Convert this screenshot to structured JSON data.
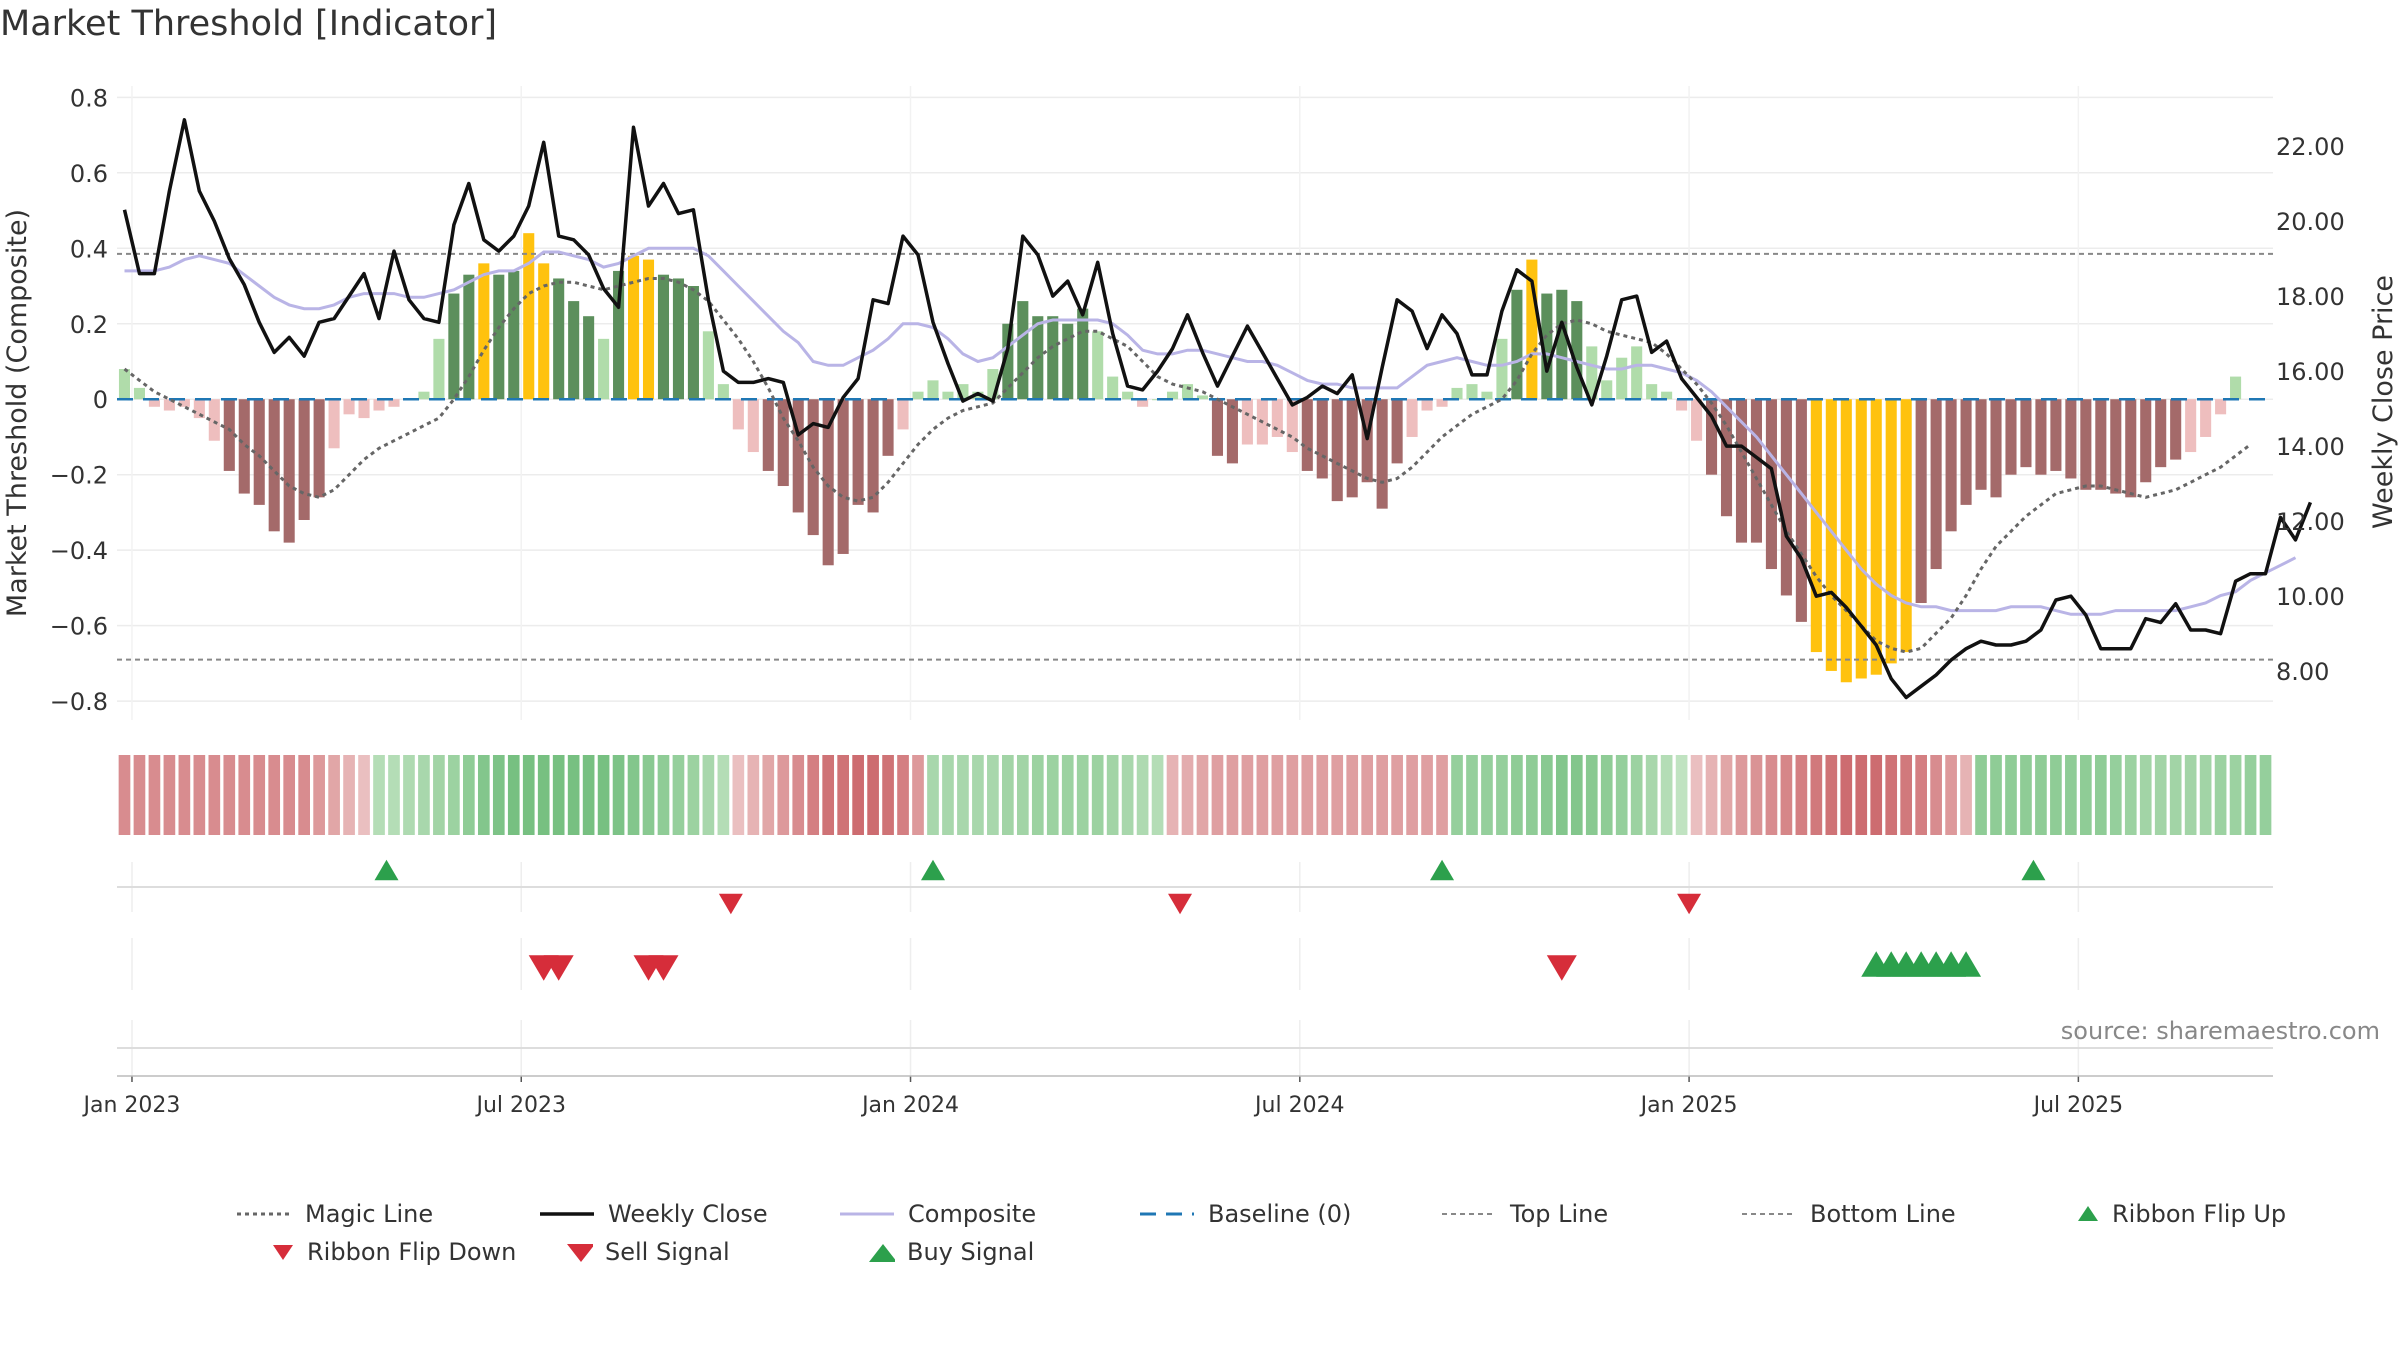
{
  "title": "Market Threshold [Indicator]",
  "chart_data": {
    "type": "bar",
    "y_left": {
      "label": "Market Threshold (Composite)",
      "lim": [
        -0.85,
        0.83
      ],
      "ticks": [
        0.8,
        0.6,
        0.4,
        0.2,
        0,
        -0.2,
        -0.4,
        -0.6,
        -0.8
      ],
      "tick_labels": [
        "0.8",
        "0.6",
        "0.4",
        "0.2",
        "0",
        "−0.2",
        "−0.4",
        "−0.6",
        "−0.8"
      ]
    },
    "y_right": {
      "label": "Weekly Close Price",
      "lim": [
        6.7,
        23.6
      ],
      "ticks": [
        22,
        20,
        18,
        16,
        14,
        12,
        10,
        8
      ],
      "tick_labels": [
        "22.00",
        "20.00",
        "18.00",
        "16.00",
        "14.00",
        "12.00",
        "10.00",
        "8.00"
      ]
    },
    "x_ticks": [
      {
        "week": 1,
        "label": "Jan 2023"
      },
      {
        "week": 27,
        "label": "Jul 2023"
      },
      {
        "week": 53,
        "label": "Jan 2024"
      },
      {
        "week": 79,
        "label": "Jul 2024"
      },
      {
        "week": 105,
        "label": "Jan 2025"
      },
      {
        "week": 131,
        "label": "Jul 2025"
      }
    ],
    "weeks": 144,
    "top_line": 0.385,
    "bottom_line": -0.69,
    "composite_bars": [
      0.08,
      0.03,
      -0.02,
      -0.03,
      -0.02,
      -0.05,
      -0.11,
      -0.19,
      -0.25,
      -0.28,
      -0.35,
      -0.38,
      -0.32,
      -0.26,
      -0.13,
      -0.04,
      -0.05,
      -0.03,
      -0.02,
      0.0,
      0.02,
      0.16,
      0.28,
      0.33,
      0.36,
      0.33,
      0.34,
      0.44,
      0.36,
      0.32,
      0.26,
      0.22,
      0.16,
      0.34,
      0.38,
      0.37,
      0.33,
      0.32,
      0.3,
      0.18,
      0.04,
      -0.08,
      -0.14,
      -0.19,
      -0.23,
      -0.3,
      -0.36,
      -0.44,
      -0.41,
      -0.28,
      -0.3,
      -0.15,
      -0.08,
      0.02,
      0.05,
      0.02,
      0.04,
      0.02,
      0.08,
      0.2,
      0.26,
      0.22,
      0.22,
      0.2,
      0.24,
      0.18,
      0.06,
      0.02,
      -0.02,
      0.0,
      0.02,
      0.04,
      0.01,
      -0.15,
      -0.17,
      -0.12,
      -0.12,
      -0.1,
      -0.14,
      -0.19,
      -0.21,
      -0.27,
      -0.26,
      -0.22,
      -0.29,
      -0.17,
      -0.1,
      -0.03,
      -0.02,
      0.03,
      0.04,
      0.02,
      0.16,
      0.29,
      0.37,
      0.28,
      0.29,
      0.26,
      0.14,
      0.05,
      0.11,
      0.14,
      0.04,
      0.02,
      -0.03,
      -0.11,
      -0.2,
      -0.31,
      -0.38,
      -0.38,
      -0.45,
      -0.52,
      -0.59,
      -0.67,
      -0.72,
      -0.75,
      -0.74,
      -0.73,
      -0.7,
      -0.67,
      -0.54,
      -0.45,
      -0.35,
      -0.28,
      -0.24,
      -0.26,
      -0.2,
      -0.18,
      -0.2,
      -0.19,
      -0.21,
      -0.24,
      -0.24,
      -0.25,
      -0.26,
      -0.22,
      -0.18,
      -0.16,
      -0.14,
      -0.1,
      -0.04,
      0.06
    ],
    "weekly_close": [
      20.3,
      18.6,
      18.6,
      20.8,
      22.7,
      20.8,
      20.0,
      19.0,
      18.3,
      17.3,
      16.5,
      16.9,
      16.4,
      17.3,
      17.4,
      18.0,
      18.6,
      17.4,
      19.2,
      17.9,
      17.4,
      17.3,
      19.9,
      21.0,
      19.5,
      19.2,
      19.6,
      20.4,
      22.1,
      19.6,
      19.5,
      19.1,
      18.2,
      17.7,
      22.5,
      20.4,
      21.0,
      20.2,
      20.3,
      17.9,
      16.0,
      15.7,
      15.7,
      15.8,
      15.7,
      14.3,
      14.6,
      14.5,
      15.3,
      15.8,
      17.9,
      17.8,
      19.6,
      19.1,
      17.3,
      16.2,
      15.2,
      15.4,
      15.2,
      16.6,
      19.6,
      19.1,
      18.0,
      18.4,
      17.5,
      18.9,
      17.0,
      15.6,
      15.5,
      16.0,
      16.6,
      17.5,
      16.5,
      15.6,
      16.4,
      17.2,
      16.5,
      15.8,
      15.1,
      15.3,
      15.6,
      15.4,
      15.9,
      14.2,
      16.1,
      17.9,
      17.6,
      16.6,
      17.5,
      17.0,
      15.9,
      15.9,
      17.6,
      18.7,
      18.4,
      16.0,
      17.3,
      16.1,
      15.1,
      16.4,
      17.9,
      18.0,
      16.5,
      16.8,
      15.8,
      15.3,
      14.8,
      14.0,
      14.0,
      13.7,
      13.4,
      11.6,
      11.0,
      10.0,
      10.1,
      9.7,
      9.2,
      8.7,
      7.8,
      7.3,
      7.6,
      7.9,
      8.3,
      8.6,
      8.8,
      8.7,
      8.7,
      8.8,
      9.1,
      9.9,
      10.0,
      9.5,
      8.6,
      8.6,
      8.6,
      9.4,
      9.3,
      9.8,
      9.1,
      9.1,
      9.0,
      10.4,
      10.6,
      10.6,
      12.1,
      11.5,
      12.5
    ],
    "composite_line": [
      0.34,
      0.34,
      0.34,
      0.35,
      0.37,
      0.38,
      0.37,
      0.36,
      0.33,
      0.3,
      0.27,
      0.25,
      0.24,
      0.24,
      0.25,
      0.27,
      0.28,
      0.28,
      0.28,
      0.27,
      0.27,
      0.28,
      0.29,
      0.31,
      0.33,
      0.34,
      0.34,
      0.36,
      0.39,
      0.39,
      0.38,
      0.37,
      0.35,
      0.36,
      0.38,
      0.4,
      0.4,
      0.4,
      0.4,
      0.38,
      0.34,
      0.3,
      0.26,
      0.22,
      0.18,
      0.15,
      0.1,
      0.09,
      0.09,
      0.11,
      0.13,
      0.16,
      0.2,
      0.2,
      0.19,
      0.16,
      0.12,
      0.1,
      0.11,
      0.14,
      0.17,
      0.2,
      0.21,
      0.21,
      0.21,
      0.21,
      0.2,
      0.17,
      0.13,
      0.12,
      0.12,
      0.13,
      0.13,
      0.12,
      0.11,
      0.1,
      0.1,
      0.09,
      0.07,
      0.05,
      0.04,
      0.04,
      0.03,
      0.03,
      0.03,
      0.03,
      0.06,
      0.09,
      0.1,
      0.11,
      0.1,
      0.09,
      0.09,
      0.1,
      0.12,
      0.12,
      0.11,
      0.1,
      0.09,
      0.08,
      0.08,
      0.09,
      0.09,
      0.08,
      0.07,
      0.05,
      0.02,
      -0.02,
      -0.06,
      -0.1,
      -0.15,
      -0.2,
      -0.25,
      -0.3,
      -0.35,
      -0.4,
      -0.45,
      -0.49,
      -0.52,
      -0.54,
      -0.55,
      -0.55,
      -0.56,
      -0.56,
      -0.56,
      -0.56,
      -0.55,
      -0.55,
      -0.55,
      -0.56,
      -0.57,
      -0.57,
      -0.57,
      -0.56,
      -0.56,
      -0.56,
      -0.56,
      -0.56,
      -0.55,
      -0.54,
      -0.52,
      -0.51,
      -0.48,
      -0.46,
      -0.44,
      -0.42
    ],
    "magic_line": [
      0.08,
      0.05,
      0.02,
      0.0,
      -0.02,
      -0.04,
      -0.06,
      -0.08,
      -0.12,
      -0.15,
      -0.19,
      -0.23,
      -0.25,
      -0.26,
      -0.24,
      -0.2,
      -0.16,
      -0.13,
      -0.11,
      -0.09,
      -0.07,
      -0.05,
      0.0,
      0.06,
      0.13,
      0.19,
      0.24,
      0.28,
      0.3,
      0.31,
      0.31,
      0.3,
      0.29,
      0.3,
      0.31,
      0.32,
      0.32,
      0.31,
      0.29,
      0.26,
      0.21,
      0.16,
      0.1,
      0.03,
      -0.05,
      -0.11,
      -0.18,
      -0.23,
      -0.26,
      -0.27,
      -0.26,
      -0.22,
      -0.17,
      -0.12,
      -0.08,
      -0.05,
      -0.03,
      -0.02,
      -0.01,
      0.03,
      0.07,
      0.11,
      0.14,
      0.16,
      0.18,
      0.18,
      0.16,
      0.14,
      0.1,
      0.06,
      0.04,
      0.03,
      0.02,
      0.0,
      -0.02,
      -0.04,
      -0.06,
      -0.08,
      -0.1,
      -0.13,
      -0.15,
      -0.17,
      -0.19,
      -0.21,
      -0.22,
      -0.21,
      -0.18,
      -0.14,
      -0.1,
      -0.07,
      -0.04,
      -0.02,
      0.0,
      0.05,
      0.12,
      0.17,
      0.2,
      0.21,
      0.2,
      0.18,
      0.17,
      0.16,
      0.15,
      0.12,
      0.08,
      0.04,
      -0.01,
      -0.07,
      -0.14,
      -0.21,
      -0.28,
      -0.35,
      -0.41,
      -0.47,
      -0.52,
      -0.56,
      -0.6,
      -0.64,
      -0.66,
      -0.67,
      -0.66,
      -0.62,
      -0.58,
      -0.52,
      -0.45,
      -0.39,
      -0.35,
      -0.31,
      -0.28,
      -0.25,
      -0.24,
      -0.23,
      -0.23,
      -0.24,
      -0.25,
      -0.26,
      -0.25,
      -0.24,
      -0.22,
      -0.2,
      -0.18,
      -0.15,
      -0.12
    ],
    "ribbon_values": [
      -0.6,
      -0.6,
      -0.6,
      -0.6,
      -0.6,
      -0.6,
      -0.6,
      -0.6,
      -0.6,
      -0.6,
      -0.6,
      -0.6,
      -0.6,
      -0.5,
      -0.4,
      -0.3,
      -0.2,
      0.3,
      0.3,
      0.35,
      0.4,
      0.45,
      0.5,
      0.6,
      0.7,
      0.75,
      0.8,
      0.8,
      0.8,
      0.8,
      0.8,
      0.8,
      0.8,
      0.75,
      0.7,
      0.65,
      0.6,
      0.55,
      0.5,
      0.4,
      0.3,
      -0.2,
      -0.3,
      -0.4,
      -0.5,
      -0.6,
      -0.7,
      -0.8,
      -0.8,
      -0.85,
      -0.85,
      -0.8,
      -0.7,
      -0.5,
      0.4,
      0.4,
      0.4,
      0.4,
      0.4,
      0.45,
      0.45,
      0.5,
      0.5,
      0.5,
      0.5,
      0.5,
      0.45,
      0.4,
      0.35,
      0.3,
      -0.3,
      -0.35,
      -0.4,
      -0.45,
      -0.45,
      -0.45,
      -0.45,
      -0.45,
      -0.45,
      -0.45,
      -0.45,
      -0.45,
      -0.45,
      -0.45,
      -0.45,
      -0.45,
      -0.45,
      -0.45,
      -0.45,
      0.55,
      0.55,
      0.55,
      0.55,
      0.6,
      0.6,
      0.65,
      0.7,
      0.7,
      0.65,
      0.6,
      0.55,
      0.5,
      0.4,
      0.3,
      0.2,
      -0.2,
      -0.3,
      -0.4,
      -0.5,
      -0.55,
      -0.6,
      -0.65,
      -0.7,
      -0.75,
      -0.8,
      -0.85,
      -0.85,
      -0.85,
      -0.8,
      -0.75,
      -0.7,
      -0.6,
      -0.5,
      -0.3,
      0.6,
      0.6,
      0.6,
      0.6,
      0.6,
      0.6,
      0.6,
      0.6,
      0.6,
      0.55,
      0.5,
      0.45,
      0.45,
      0.45,
      0.45,
      0.45,
      0.5,
      0.5,
      0.55,
      0.55
    ],
    "events": {
      "ribbon_flip_up": [
        17.5,
        54,
        88,
        127.5
      ],
      "ribbon_flip_down": [
        40.5,
        70.5,
        104.5
      ],
      "sell_signal": [
        28,
        29,
        35,
        36,
        96
      ],
      "buy_signal": [
        117,
        118,
        119,
        120,
        121,
        122,
        123
      ]
    },
    "source": "source: sharemaestro.com",
    "legend": [
      "Magic Line",
      "Weekly Close",
      "Composite",
      "Baseline (0)",
      "Top Line",
      "Bottom Line",
      "Ribbon Flip Up",
      "Ribbon Flip Down",
      "Sell Signal",
      "Buy Signal"
    ],
    "colors": {
      "bar_pos_strong": "#5c8f5c",
      "bar_pos_light": "#b0dcaa",
      "bar_neg_strong": "#a46a6a",
      "bar_neg_light": "#eebebe",
      "extreme": "#ffc20e",
      "close": "#111111",
      "composite": "#b9b4e6",
      "magic": "#666666",
      "baseline": "#1f77b4",
      "threshold": "#888888",
      "up": "#2ca04c",
      "down": "#d62d3a"
    }
  }
}
